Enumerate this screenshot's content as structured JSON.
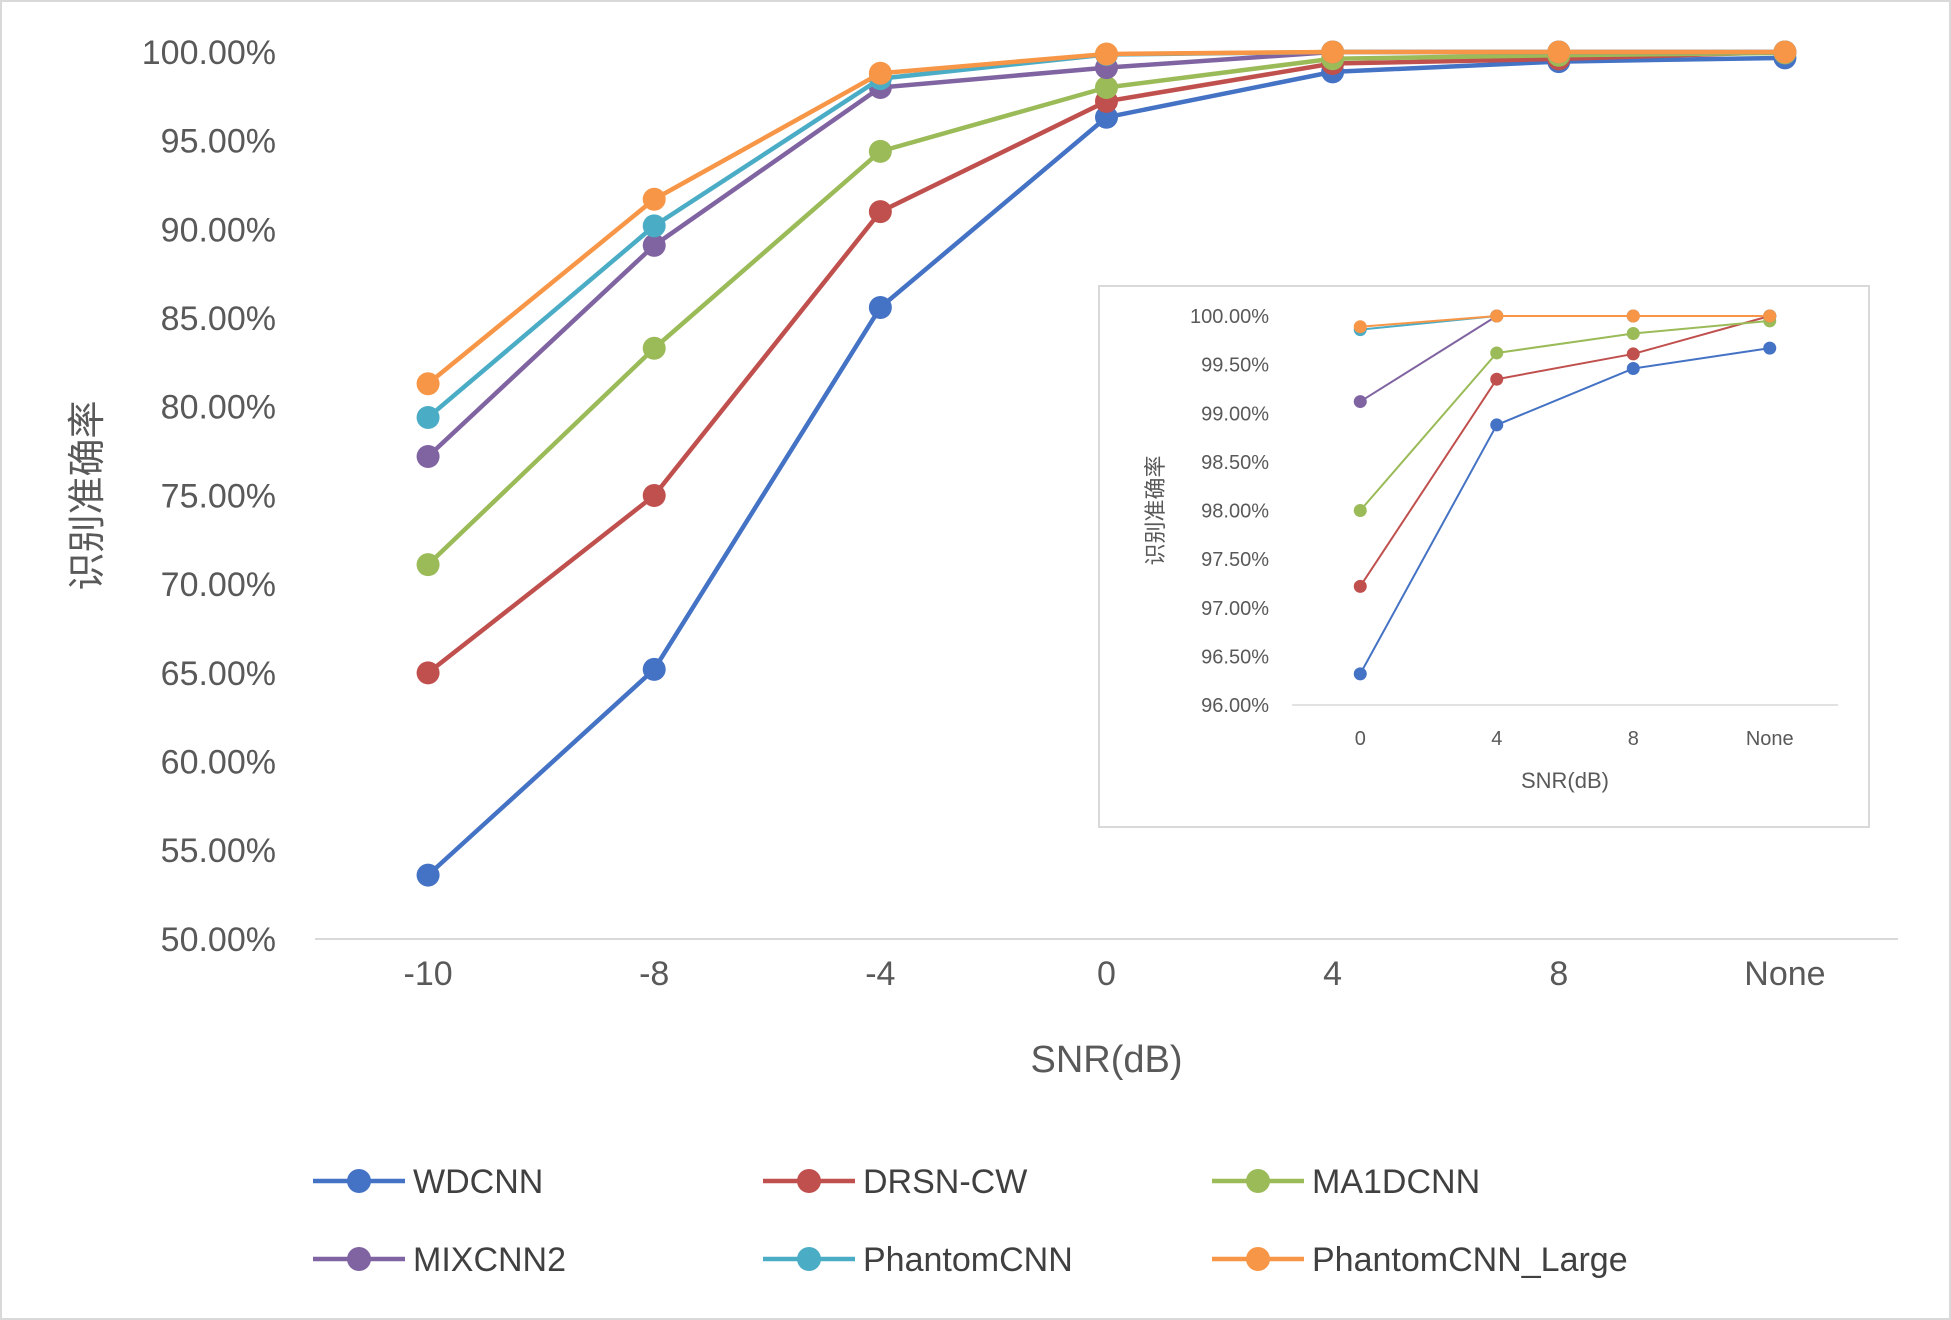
{
  "chart_data": [
    {
      "type": "line",
      "title": "",
      "xlabel": "SNR(dB)",
      "ylabel": "识别准确率",
      "categories": [
        "-10",
        "-8",
        "-4",
        "0",
        "4",
        "8",
        "None"
      ],
      "ylim": [
        50,
        100
      ],
      "yticks": [
        "50.00%",
        "55.00%",
        "60.00%",
        "65.00%",
        "70.00%",
        "75.00%",
        "80.00%",
        "85.00%",
        "90.00%",
        "95.00%",
        "100.00%"
      ],
      "grid": false,
      "legend_position": "bottom",
      "series": [
        {
          "name": "WDCNN",
          "color": "#4472C4",
          "values": [
            53.6,
            65.2,
            85.6,
            96.32,
            98.88,
            99.46,
            99.67
          ]
        },
        {
          "name": "DRSN-CW",
          "color": "#C0504D",
          "values": [
            65.0,
            75.0,
            91.0,
            97.22,
            99.35,
            99.61,
            100.0
          ]
        },
        {
          "name": "MA1DCNN",
          "color": "#9BBB59",
          "values": [
            71.1,
            83.3,
            94.4,
            98.0,
            99.62,
            99.82,
            99.95
          ]
        },
        {
          "name": "MIXCNN2",
          "color": "#8064A2",
          "values": [
            77.2,
            89.1,
            98.0,
            99.12,
            100.0,
            100.0,
            100.0
          ]
        },
        {
          "name": "PhantomCNN",
          "color": "#4BACC6",
          "values": [
            79.4,
            90.2,
            98.5,
            99.86,
            100.0,
            100.0,
            100.0
          ]
        },
        {
          "name": "PhantomCNN_Large",
          "color": "#F79646",
          "values": [
            81.3,
            91.7,
            98.8,
            99.89,
            100.0,
            100.0,
            100.0
          ]
        }
      ]
    },
    {
      "type": "line",
      "title": "",
      "xlabel": "SNR(dB)",
      "ylabel": "识别准确率",
      "categories": [
        "0",
        "4",
        "8",
        "None"
      ],
      "ylim": [
        96,
        100
      ],
      "yticks": [
        "96.00%",
        "96.50%",
        "97.00%",
        "97.50%",
        "98.00%",
        "98.50%",
        "99.00%",
        "99.50%",
        "100.00%"
      ],
      "grid": false,
      "legend_position": "none",
      "series": [
        {
          "name": "WDCNN",
          "color": "#4472C4",
          "values": [
            96.32,
            98.88,
            99.46,
            99.67
          ]
        },
        {
          "name": "DRSN-CW",
          "color": "#C0504D",
          "values": [
            97.22,
            99.35,
            99.61,
            100.0
          ]
        },
        {
          "name": "MA1DCNN",
          "color": "#9BBB59",
          "values": [
            98.0,
            99.62,
            99.82,
            99.95
          ]
        },
        {
          "name": "MIXCNN2",
          "color": "#8064A2",
          "values": [
            99.12,
            100.0,
            100.0,
            100.0
          ]
        },
        {
          "name": "PhantomCNN",
          "color": "#4BACC6",
          "values": [
            99.86,
            100.0,
            100.0,
            100.0
          ]
        },
        {
          "name": "PhantomCNN_Large",
          "color": "#F79646",
          "values": [
            99.89,
            100.0,
            100.0,
            100.0
          ]
        }
      ]
    }
  ]
}
